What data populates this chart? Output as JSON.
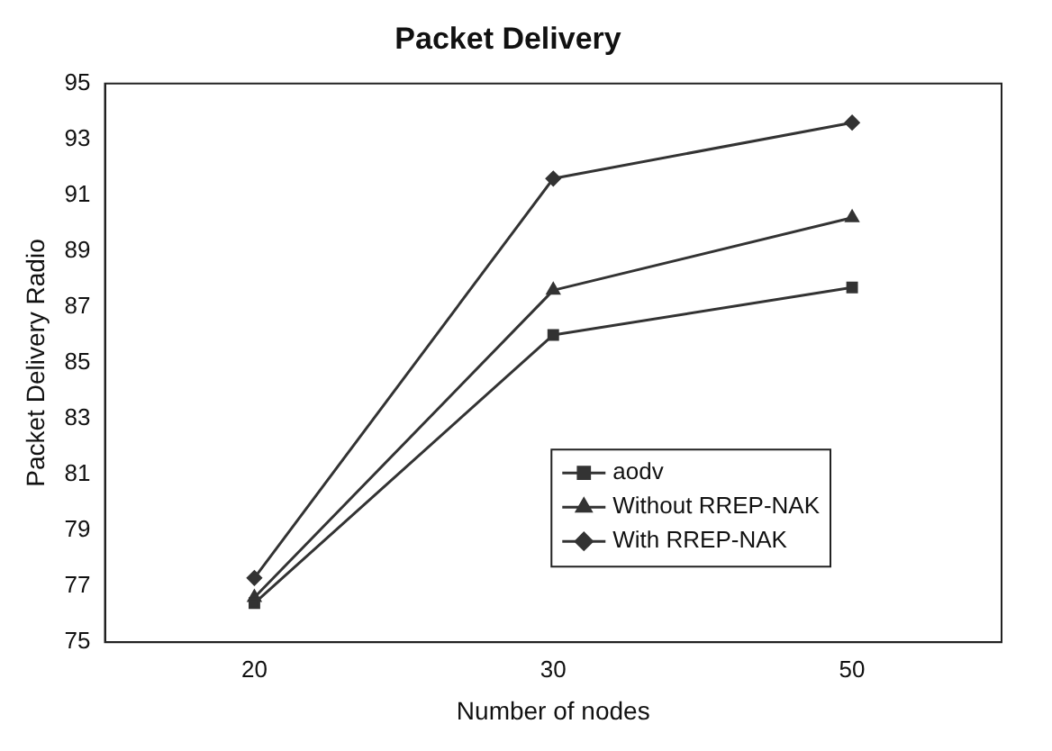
{
  "chart_data": {
    "type": "line",
    "title": "Packet Delivery",
    "xlabel": "Number of nodes",
    "ylabel": "Packet Delivery Radio",
    "categories": [
      "20",
      "30",
      "50"
    ],
    "series": [
      {
        "name": "aodv",
        "color": "#333333",
        "marker": "square",
        "values": [
          76.4,
          86.0,
          87.7
        ]
      },
      {
        "name": "Without RREP-NAK",
        "color": "#333333",
        "marker": "triangle",
        "values": [
          76.6,
          87.6,
          90.2
        ]
      },
      {
        "name": "With RREP-NAK",
        "color": "#333333",
        "marker": "diamond",
        "values": [
          77.3,
          91.6,
          93.6
        ]
      }
    ],
    "ylim": [
      75,
      95
    ],
    "yticks": [
      75,
      77,
      79,
      81,
      83,
      85,
      87,
      89,
      91,
      93,
      95
    ],
    "grid": false,
    "legend": "bottom right",
    "line_style": "solid"
  }
}
